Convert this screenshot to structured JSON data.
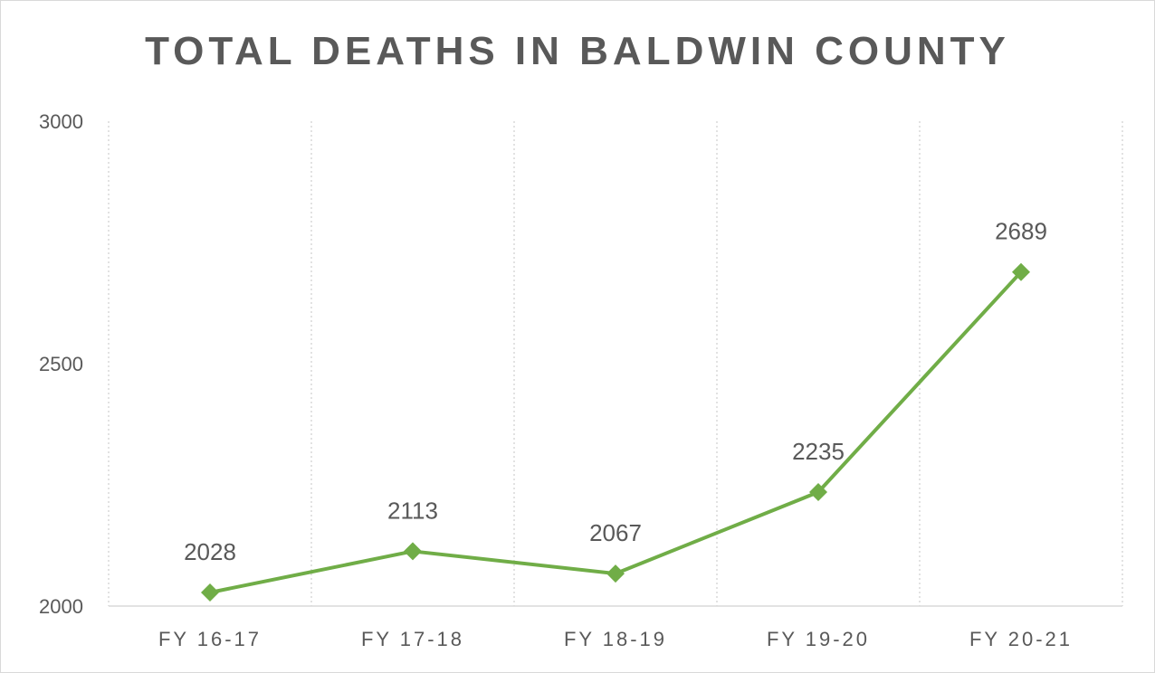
{
  "chart_data": {
    "type": "line",
    "title": "TOTAL DEATHS IN BALDWIN COUNTY",
    "xlabel": "",
    "ylabel": "",
    "categories": [
      "FY 16-17",
      "FY 17-18",
      "FY 18-19",
      "FY 19-20",
      "FY 20-21"
    ],
    "series": [
      {
        "values": [
          2028,
          2113,
          2067,
          2235,
          2689
        ]
      }
    ],
    "ylim": [
      2000,
      3000
    ],
    "yticks": [
      2000,
      2500,
      3000
    ],
    "grid": "vertical dotted category separators",
    "legend": "none",
    "data_labels": true,
    "colors": {
      "line": "#70ad47",
      "text": "#595959",
      "grid": "#d9d9d9"
    },
    "marker": "diamond"
  }
}
